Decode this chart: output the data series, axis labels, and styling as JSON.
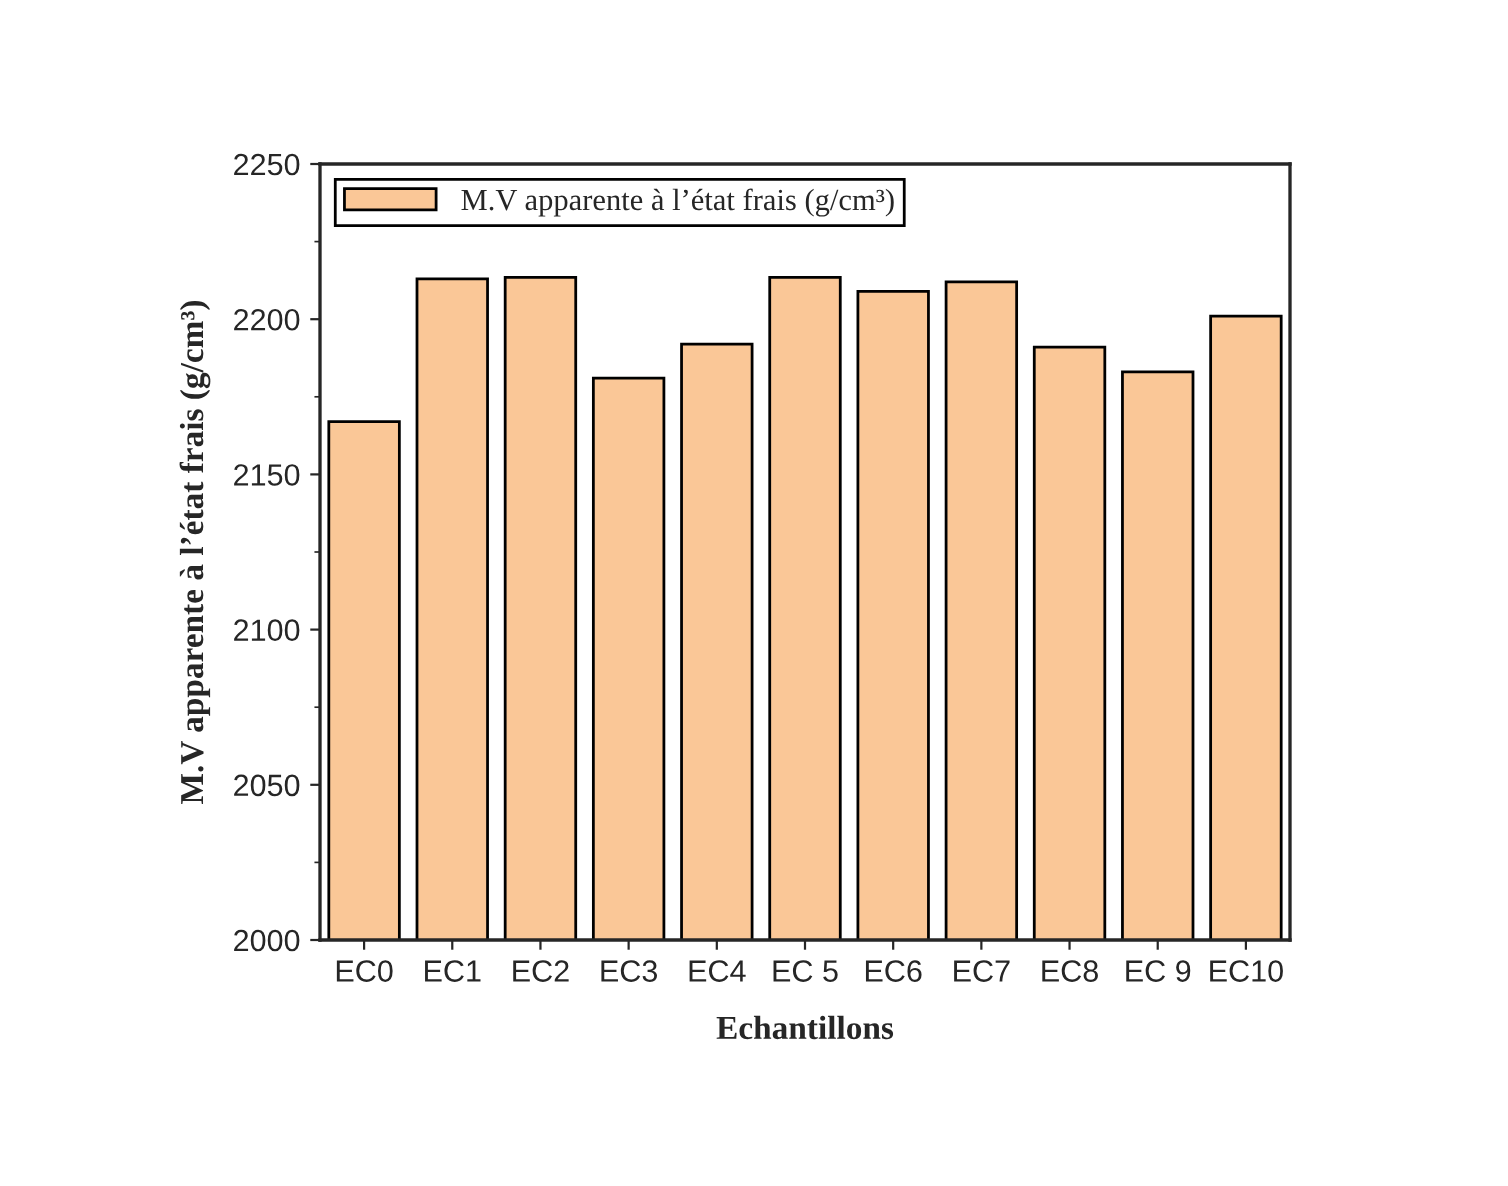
{
  "chart_data": {
    "type": "bar",
    "xlabel": "Echantillons",
    "ylabel": "M.V apparente à l’état frais (g/cm³)",
    "categories": [
      "EC0",
      "EC1",
      "EC2",
      "EC3",
      "EC4",
      "EC 5",
      "EC6",
      "EC7",
      "EC8",
      "EC 9",
      "EC10"
    ],
    "series": [
      {
        "name": "M.V apparente à l’état frais (g/cm³)",
        "color": "#fac797",
        "values": [
          2167,
          2213,
          2213.5,
          2181,
          2192,
          2213.5,
          2209,
          2212,
          2191,
          2183,
          2201
        ]
      }
    ],
    "ylim": [
      2000,
      2250
    ],
    "yticks": [
      2000,
      2050,
      2100,
      2150,
      2200,
      2250
    ],
    "grid": false,
    "legend": "top left"
  }
}
